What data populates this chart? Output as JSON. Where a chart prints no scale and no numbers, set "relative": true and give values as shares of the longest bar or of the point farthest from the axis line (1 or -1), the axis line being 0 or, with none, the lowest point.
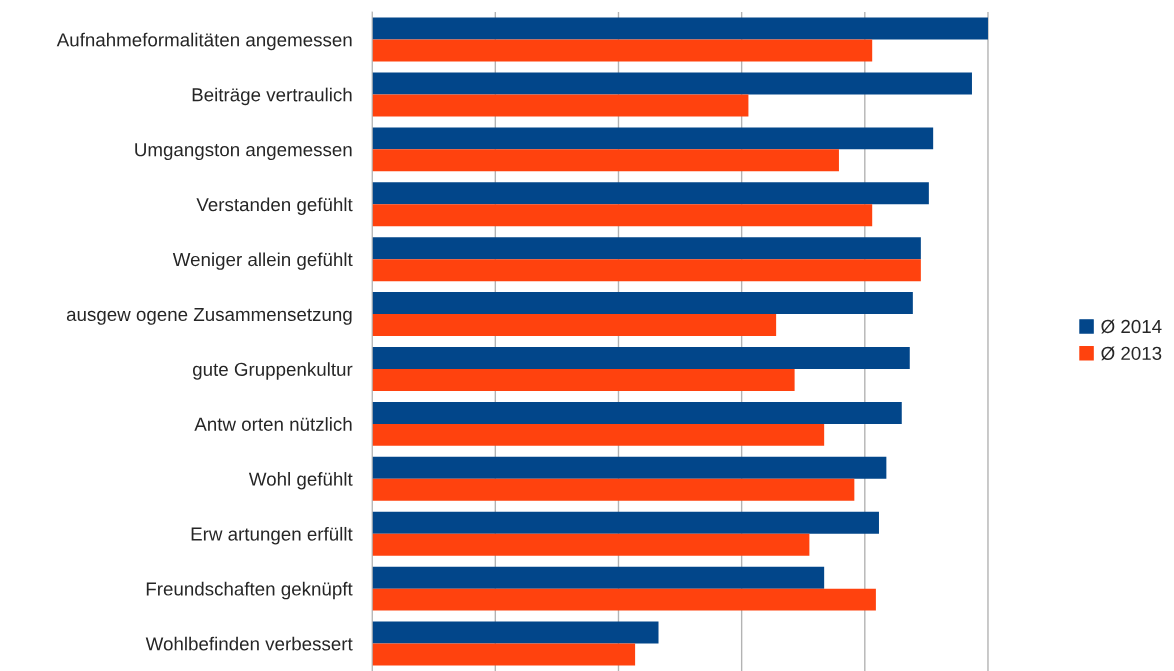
{
  "chart_data": {
    "type": "bar",
    "orientation": "horizontal",
    "relative": true,
    "grid": "x",
    "legend": "right",
    "categories": [
      "Aufnahmeformalitäten angemessen",
      "Beiträge vertraulich",
      "Umgangston angemessen",
      "Verstanden gefühlt",
      "Weniger allein gefühlt",
      "ausgew ogene Zusammensetzung",
      "gute Gruppenkultur",
      "Antw orten nützlich",
      "Wohl gefühlt",
      "Erw artungen erfüllt",
      "Freundschaften geknüpft",
      "Wohlbefinden verbessert"
    ],
    "series": [
      {
        "name": "Ø 2014",
        "color": "#02468a",
        "values": [
          1.0,
          0.974,
          0.911,
          0.904,
          0.891,
          0.878,
          0.873,
          0.86,
          0.835,
          0.823,
          0.734,
          0.465
        ]
      },
      {
        "name": "Ø 2013",
        "color": "#ff420e",
        "values": [
          0.812,
          0.611,
          0.758,
          0.812,
          0.891,
          0.656,
          0.686,
          0.734,
          0.783,
          0.71,
          0.818,
          0.427
        ]
      }
    ]
  }
}
